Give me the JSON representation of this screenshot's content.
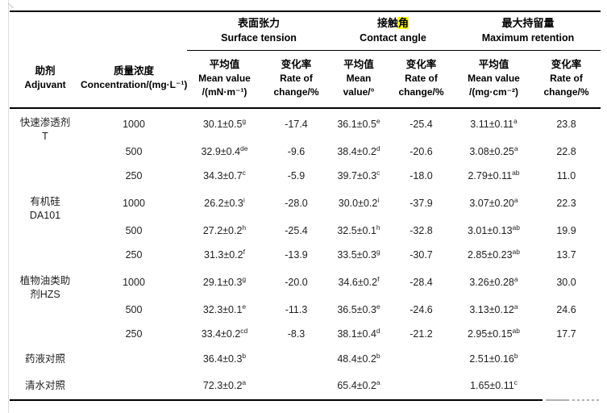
{
  "meta": {
    "highlight_color": "#ffff00",
    "rule_color": "#000000",
    "page_edge_color": "#dcdcdc",
    "text_color": "#1f1f1f"
  },
  "table": {
    "groups": [
      {
        "zh": "表面张力",
        "en": "Surface tension"
      },
      {
        "zh_pre": "接触",
        "zh_hl": "角",
        "en": "Contact angle"
      },
      {
        "zh": "最大持留量",
        "en": "Maximum retention"
      }
    ],
    "col1": {
      "zh": "助剂",
      "en": "Adjuvant"
    },
    "col2": {
      "zh": "质量浓度",
      "en": "Concentration/(mg·L⁻¹)"
    },
    "subcols": [
      {
        "zh": "平均值",
        "en1": "Mean value",
        "en2": "/(mN·m⁻¹)"
      },
      {
        "zh": "变化率",
        "en1": "Rate of",
        "en2": "change/%"
      },
      {
        "zh": "平均值",
        "en1": "Mean",
        "en2": "value/°"
      },
      {
        "zh": "变化率",
        "en1": "Rate of",
        "en2": "change/%"
      },
      {
        "zh": "平均值",
        "en1": "Mean value",
        "en2": "/(mg·cm⁻²)"
      },
      {
        "zh": "变化率",
        "en1": "Rate of",
        "en2": "change/%"
      }
    ],
    "body": [
      {
        "label_lines": [
          "快速渗透剂",
          "T"
        ],
        "rows": [
          {
            "conc": "1000",
            "cells": [
              {
                "v": "30.1±0.5",
                "s": "g"
              },
              {
                "v": "-17.4"
              },
              {
                "v": "36.1±0.5",
                "s": "e"
              },
              {
                "v": "-25.4"
              },
              {
                "v": "3.11±0.11",
                "s": "a"
              },
              {
                "v": "23.8"
              }
            ]
          },
          {
            "conc": "500",
            "cells": [
              {
                "v": "32.9±0.4",
                "s": "de"
              },
              {
                "v": "-9.6"
              },
              {
                "v": "38.4±0.2",
                "s": "d"
              },
              {
                "v": "-20.6"
              },
              {
                "v": "3.08±0.25",
                "s": "a"
              },
              {
                "v": "22.8"
              }
            ]
          },
          {
            "conc": "250",
            "cells": [
              {
                "v": "34.3±0.7",
                "s": "c"
              },
              {
                "v": "-5.9"
              },
              {
                "v": "39.7±0.3",
                "s": "c"
              },
              {
                "v": "-18.0"
              },
              {
                "v": "2.79±0.11",
                "s": "ab"
              },
              {
                "v": "11.0"
              }
            ]
          }
        ]
      },
      {
        "label_lines": [
          "有机硅",
          "DA101"
        ],
        "rows": [
          {
            "conc": "1000",
            "cells": [
              {
                "v": "26.2±0.3",
                "s": "i"
              },
              {
                "v": "-28.0"
              },
              {
                "v": "30.0±0.2",
                "s": "i"
              },
              {
                "v": "-37.9"
              },
              {
                "v": "3.07±0.20",
                "s": "a"
              },
              {
                "v": "22.3"
              }
            ]
          },
          {
            "conc": "500",
            "cells": [
              {
                "v": "27.2±0.2",
                "s": "h"
              },
              {
                "v": "-25.4"
              },
              {
                "v": "32.5±0.1",
                "s": "h"
              },
              {
                "v": "-32.8"
              },
              {
                "v": "3.01±0.13",
                "s": "ab"
              },
              {
                "v": "19.9"
              }
            ]
          },
          {
            "conc": "250",
            "cells": [
              {
                "v": "31.3±0.2",
                "s": "f"
              },
              {
                "v": "-13.9"
              },
              {
                "v": "33.5±0.3",
                "s": "g"
              },
              {
                "v": "-30.7"
              },
              {
                "v": "2.85±0.23",
                "s": "ab"
              },
              {
                "v": "13.7"
              }
            ]
          }
        ]
      },
      {
        "label_lines": [
          "植物油类助",
          "剂HZS"
        ],
        "rows": [
          {
            "conc": "1000",
            "cells": [
              {
                "v": "29.1±0.3",
                "s": "g"
              },
              {
                "v": "-20.0"
              },
              {
                "v": "34.6±0.2",
                "s": "f"
              },
              {
                "v": "-28.4"
              },
              {
                "v": "3.26±0.28",
                "s": "a"
              },
              {
                "v": "30.0"
              }
            ]
          },
          {
            "conc": "500",
            "cells": [
              {
                "v": "32.3±0.1",
                "s": "e"
              },
              {
                "v": "-11.3"
              },
              {
                "v": "36.5±0.3",
                "s": "e"
              },
              {
                "v": "-24.6"
              },
              {
                "v": "3.13±0.12",
                "s": "a"
              },
              {
                "v": "24.6"
              }
            ]
          },
          {
            "conc": "250",
            "cells": [
              {
                "v": "33.4±0.2",
                "s": "cd"
              },
              {
                "v": "-8.3"
              },
              {
                "v": "38.1±0.4",
                "s": "d"
              },
              {
                "v": "-21.2"
              },
              {
                "v": "2.95±0.15",
                "s": "ab"
              },
              {
                "v": "17.7"
              }
            ]
          }
        ]
      },
      {
        "label_lines": [
          "药液对照"
        ],
        "rows": [
          {
            "conc": "",
            "cells": [
              {
                "v": "36.4±0.3",
                "s": "b"
              },
              {
                "v": ""
              },
              {
                "v": "48.4±0.2",
                "s": "b"
              },
              {
                "v": ""
              },
              {
                "v": "2.51±0.16",
                "s": "b"
              },
              {
                "v": ""
              }
            ]
          }
        ]
      },
      {
        "label_lines": [
          "清水对照"
        ],
        "rows": [
          {
            "conc": "",
            "cells": [
              {
                "v": "72.3±0.2",
                "s": "a"
              },
              {
                "v": ""
              },
              {
                "v": "65.4±0.2",
                "s": "a"
              },
              {
                "v": ""
              },
              {
                "v": "1.65±0.11",
                "s": "c"
              },
              {
                "v": ""
              }
            ]
          }
        ]
      }
    ]
  }
}
